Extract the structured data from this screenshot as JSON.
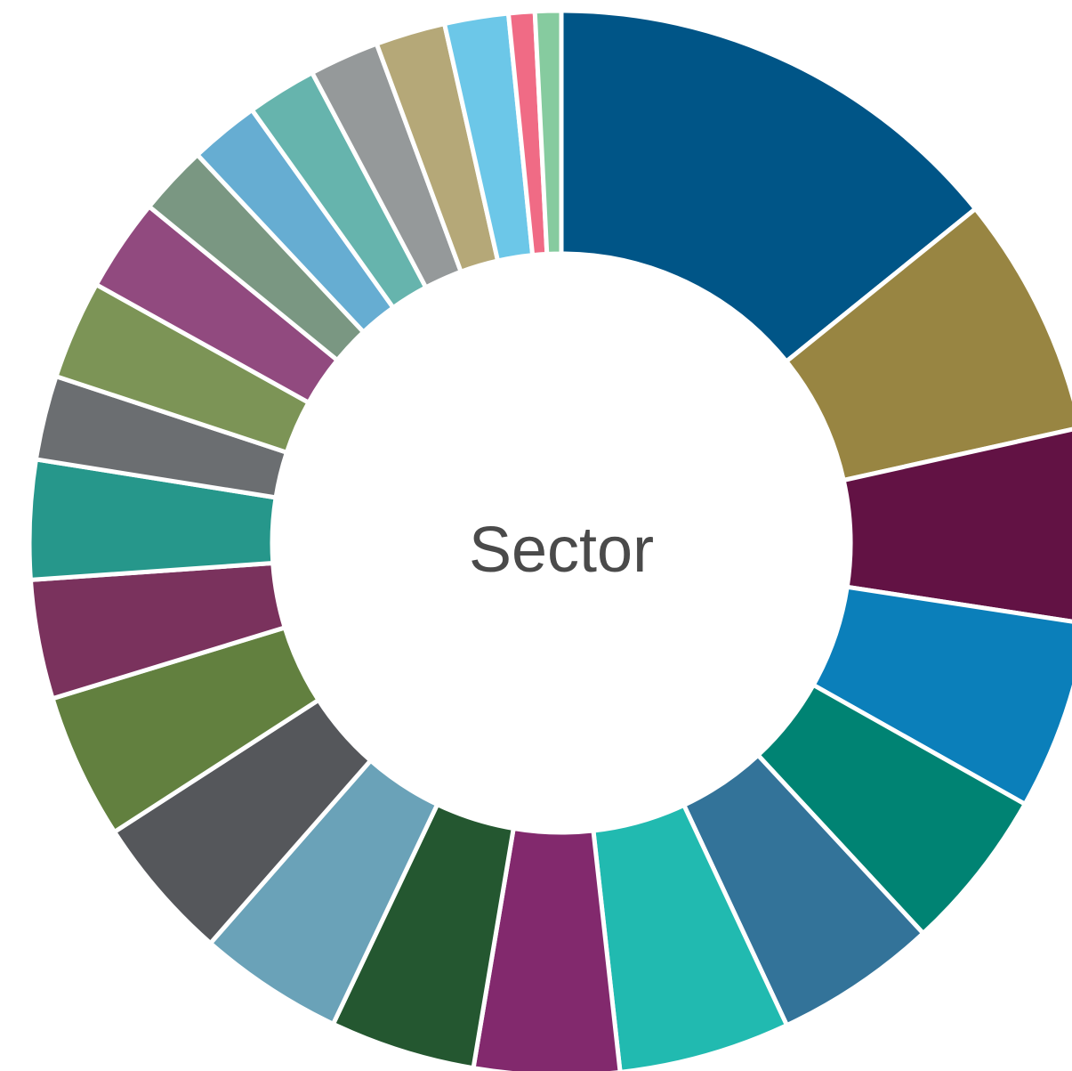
{
  "chart_data": {
    "type": "pie",
    "variant": "donut",
    "center_label": "Sector",
    "slices": [
      {
        "value": 16.1,
        "color": "#005587"
      },
      {
        "value": 8.3,
        "color": "#988542"
      },
      {
        "value": 6.7,
        "color": "#621244"
      },
      {
        "value": 6.5,
        "color": "#0b7fba"
      },
      {
        "value": 5.6,
        "color": "#008373"
      },
      {
        "value": 5.6,
        "color": "#337399"
      },
      {
        "value": 5.9,
        "color": "#21bab0"
      },
      {
        "value": 5.0,
        "color": "#82296d"
      },
      {
        "value": 5.0,
        "color": "#245730"
      },
      {
        "value": 5.0,
        "color": "#6aa2b8"
      },
      {
        "value": 5.0,
        "color": "#55575b"
      },
      {
        "value": 5.0,
        "color": "#62803f"
      },
      {
        "value": 4.1,
        "color": "#7a325d"
      },
      {
        "value": 4.1,
        "color": "#26978b"
      },
      {
        "value": 2.9,
        "color": "#6b6e71"
      },
      {
        "value": 3.4,
        "color": "#7c9456"
      },
      {
        "value": 3.2,
        "color": "#914a7f"
      },
      {
        "value": 2.4,
        "color": "#7a9782"
      },
      {
        "value": 2.4,
        "color": "#66add2"
      },
      {
        "value": 2.4,
        "color": "#66b4ad"
      },
      {
        "value": 2.4,
        "color": "#95999a"
      },
      {
        "value": 2.4,
        "color": "#b5a878"
      },
      {
        "value": 2.2,
        "color": "#6cc7e8"
      },
      {
        "value": 0.9,
        "color": "#f06b85"
      },
      {
        "value": 0.9,
        "color": "#86cb9f"
      }
    ]
  }
}
